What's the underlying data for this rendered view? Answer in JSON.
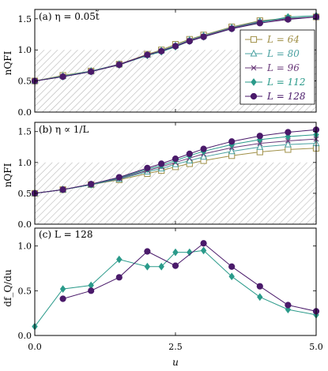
{
  "figure": {
    "xlabel": "u",
    "x_ticks": [
      "0.0",
      "2.5",
      "5.0"
    ]
  },
  "chart_data": [
    {
      "type": "line",
      "panel": "a",
      "title": "(a) η = 0.05t̃",
      "ylabel": "nQFI",
      "xlabel": "",
      "xlim": [
        0.0,
        5.0
      ],
      "ylim": [
        0.0,
        1.65
      ],
      "y_ticks": [
        "0.0",
        "0.5",
        "1.0",
        "1.5"
      ],
      "shaded_region_below_y": 1.0,
      "legend_position": "right",
      "series": [
        {
          "name": "L = 64",
          "color": "#a09048",
          "marker": "square",
          "x": [
            0.0,
            0.5,
            1.0,
            1.5,
            2.0,
            2.25,
            2.5,
            2.75,
            3.0,
            3.5,
            4.0,
            4.5,
            5.0
          ],
          "values": [
            0.5,
            0.59,
            0.66,
            0.77,
            0.93,
            1.0,
            1.09,
            1.17,
            1.24,
            1.37,
            1.47,
            1.51,
            1.53
          ]
        },
        {
          "name": "L = 80",
          "color": "#48a0a0",
          "marker": "triangle",
          "x": [
            0.0,
            0.5,
            1.0,
            1.5,
            2.0,
            2.25,
            2.5,
            2.75,
            3.0,
            3.5,
            4.0,
            4.5,
            5.0
          ],
          "values": [
            0.5,
            0.58,
            0.66,
            0.77,
            0.92,
            0.99,
            1.07,
            1.16,
            1.23,
            1.36,
            1.46,
            1.51,
            1.53
          ]
        },
        {
          "name": "L = 96",
          "color": "#6a3a7a",
          "marker": "x",
          "x": [
            0.0,
            0.5,
            1.0,
            1.5,
            2.0,
            2.25,
            2.5,
            2.75,
            3.0,
            3.5,
            4.0,
            4.5,
            5.0
          ],
          "values": [
            0.5,
            0.57,
            0.65,
            0.77,
            0.92,
            0.98,
            1.06,
            1.15,
            1.22,
            1.35,
            1.45,
            1.5,
            1.53
          ]
        },
        {
          "name": "L = 112",
          "color": "#2a9a8a",
          "marker": "diamond",
          "x": [
            0.0,
            0.5,
            1.0,
            1.5,
            2.0,
            2.25,
            2.5,
            2.75,
            3.0,
            3.5,
            4.0,
            4.5,
            5.0
          ],
          "values": [
            0.5,
            0.57,
            0.65,
            0.76,
            0.91,
            0.97,
            1.05,
            1.14,
            1.21,
            1.34,
            1.44,
            1.53,
            1.55
          ]
        },
        {
          "name": "L = 128",
          "color": "#4a1a6a",
          "marker": "circle",
          "x": [
            0.0,
            0.5,
            1.0,
            1.5,
            2.0,
            2.25,
            2.5,
            2.75,
            3.0,
            3.5,
            4.0,
            4.5,
            5.0
          ],
          "values": [
            0.5,
            0.57,
            0.65,
            0.76,
            0.92,
            0.98,
            1.06,
            1.14,
            1.21,
            1.34,
            1.43,
            1.49,
            1.53
          ]
        }
      ]
    },
    {
      "type": "line",
      "panel": "b",
      "title": "(b) η ∝ 1/L",
      "ylabel": "nQFI",
      "xlabel": "",
      "xlim": [
        0.0,
        5.0
      ],
      "ylim": [
        0.0,
        1.65
      ],
      "y_ticks": [
        "0.0",
        "0.5",
        "1.0",
        "1.5"
      ],
      "shaded_region_below_y": 1.0,
      "series": [
        {
          "name": "L = 64",
          "color": "#a09048",
          "marker": "square",
          "x": [
            0.0,
            0.5,
            1.0,
            1.5,
            2.0,
            2.25,
            2.5,
            2.75,
            3.0,
            3.5,
            4.0,
            4.5,
            5.0
          ],
          "values": [
            0.5,
            0.56,
            0.64,
            0.72,
            0.82,
            0.87,
            0.93,
            0.98,
            1.03,
            1.11,
            1.17,
            1.21,
            1.23
          ]
        },
        {
          "name": "L = 80",
          "color": "#48a0a0",
          "marker": "triangle",
          "x": [
            0.0,
            0.5,
            1.0,
            1.5,
            2.0,
            2.25,
            2.5,
            2.75,
            3.0,
            3.5,
            4.0,
            4.5,
            5.0
          ],
          "values": [
            0.5,
            0.56,
            0.64,
            0.73,
            0.85,
            0.9,
            0.97,
            1.03,
            1.09,
            1.18,
            1.25,
            1.29,
            1.31
          ]
        },
        {
          "name": "L = 96",
          "color": "#6a3a7a",
          "marker": "x",
          "x": [
            0.0,
            0.5,
            1.0,
            1.5,
            2.0,
            2.25,
            2.5,
            2.75,
            3.0,
            3.5,
            4.0,
            4.5,
            5.0
          ],
          "values": [
            0.5,
            0.56,
            0.64,
            0.74,
            0.87,
            0.93,
            1.0,
            1.07,
            1.14,
            1.24,
            1.31,
            1.35,
            1.38
          ]
        },
        {
          "name": "L = 112",
          "color": "#2a9a8a",
          "marker": "diamond",
          "x": [
            0.0,
            0.5,
            1.0,
            1.5,
            2.0,
            2.25,
            2.5,
            2.75,
            3.0,
            3.5,
            4.0,
            4.5,
            5.0
          ],
          "values": [
            0.5,
            0.56,
            0.64,
            0.75,
            0.89,
            0.95,
            1.03,
            1.11,
            1.18,
            1.29,
            1.37,
            1.42,
            1.45
          ]
        },
        {
          "name": "L = 128",
          "color": "#4a1a6a",
          "marker": "circle",
          "x": [
            0.0,
            0.5,
            1.0,
            1.5,
            2.0,
            2.25,
            2.5,
            2.75,
            3.0,
            3.5,
            4.0,
            4.5,
            5.0
          ],
          "values": [
            0.5,
            0.56,
            0.65,
            0.76,
            0.91,
            0.98,
            1.06,
            1.14,
            1.22,
            1.34,
            1.43,
            1.49,
            1.53
          ]
        }
      ]
    },
    {
      "type": "line",
      "panel": "c",
      "title": "(c) L = 128",
      "ylabel": "df_Q/du",
      "xlabel": "u",
      "xlim": [
        0.0,
        5.0
      ],
      "ylim": [
        0.0,
        1.2
      ],
      "y_ticks": [
        "0.0",
        "0.5",
        "1.0"
      ],
      "series": [
        {
          "name": "",
          "color": "#2a9a8a",
          "marker": "diamond",
          "x": [
            0.0,
            0.5,
            1.0,
            1.5,
            2.0,
            2.25,
            2.5,
            2.75,
            3.0,
            3.5,
            4.0,
            4.5,
            5.0
          ],
          "values": [
            0.1,
            0.52,
            0.56,
            0.85,
            0.77,
            0.77,
            0.93,
            0.93,
            0.95,
            0.66,
            0.43,
            0.29,
            0.23
          ]
        },
        {
          "name": "",
          "color": "#4a1a6a",
          "marker": "circle",
          "x": [
            0.5,
            1.0,
            1.5,
            2.0,
            2.5,
            3.0,
            3.5,
            4.0,
            4.5,
            5.0
          ],
          "values": [
            0.41,
            0.5,
            0.65,
            0.94,
            0.78,
            1.03,
            0.77,
            0.55,
            0.34,
            0.27
          ]
        }
      ]
    }
  ]
}
